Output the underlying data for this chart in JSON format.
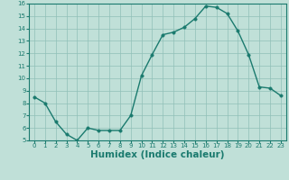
{
  "x": [
    0,
    1,
    2,
    3,
    4,
    5,
    6,
    7,
    8,
    9,
    10,
    11,
    12,
    13,
    14,
    15,
    16,
    17,
    18,
    19,
    20,
    21,
    22,
    23
  ],
  "y": [
    8.5,
    8.0,
    6.5,
    5.5,
    5.0,
    6.0,
    5.8,
    5.8,
    5.8,
    7.0,
    10.2,
    11.9,
    13.5,
    13.7,
    14.1,
    14.8,
    15.8,
    15.7,
    15.2,
    13.8,
    11.9,
    9.3,
    9.2,
    8.6
  ],
  "line_color": "#1a7a6e",
  "marker_color": "#1a7a6e",
  "bg_color": "#c0e0d8",
  "grid_color": "#90c0b8",
  "xlabel": "Humidex (Indice chaleur)",
  "ylim": [
    5,
    16
  ],
  "xlim_min": -0.5,
  "xlim_max": 23.5,
  "yticks": [
    5,
    6,
    7,
    8,
    9,
    10,
    11,
    12,
    13,
    14,
    15,
    16
  ],
  "xticks": [
    0,
    1,
    2,
    3,
    4,
    5,
    6,
    7,
    8,
    9,
    10,
    11,
    12,
    13,
    14,
    15,
    16,
    17,
    18,
    19,
    20,
    21,
    22,
    23
  ],
  "tick_label_fontsize": 5.0,
  "xlabel_fontsize": 7.5,
  "line_width": 1.0,
  "marker_size": 2.5
}
